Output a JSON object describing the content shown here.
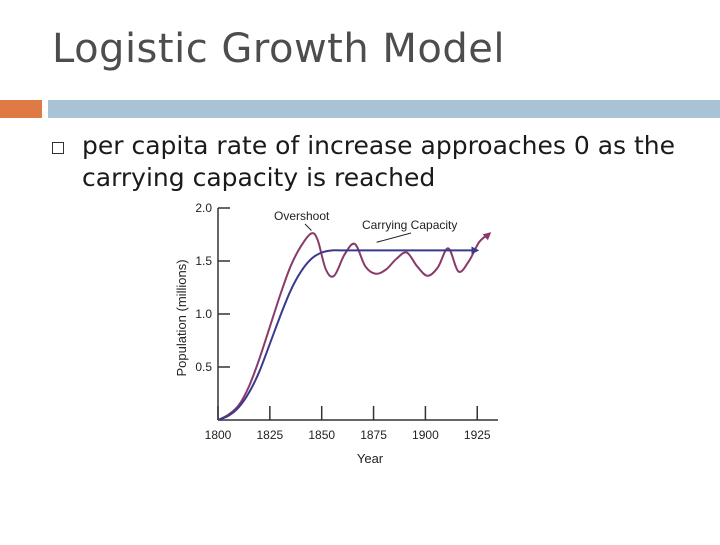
{
  "slide": {
    "title": "Logistic Growth Model",
    "bullet": "per capita rate of increase approaches 0 as the carrying capacity is reached"
  },
  "colors": {
    "accent_orange": "#e07a45",
    "accent_blue": "#a9c3d6",
    "carrying_capacity_curve": "#3a3a8c",
    "overshoot_curve": "#8a3a6a"
  },
  "chart_data": {
    "type": "line",
    "xlabel": "Year",
    "ylabel": "Population (millions)",
    "xlim": [
      1800,
      1935
    ],
    "ylim": [
      0,
      2.0
    ],
    "xticks": [
      1800,
      1825,
      1850,
      1875,
      1900,
      1925
    ],
    "yticks": [
      0.5,
      1.0,
      1.5,
      2.0
    ],
    "ytick_labels": [
      "0.5",
      "1.0",
      "1.5",
      "2.0"
    ],
    "grid": false,
    "annotations": [
      {
        "text": "Overshoot",
        "target": [
          1846,
          1.75
        ]
      },
      {
        "text": "Carrying Capacity",
        "target": [
          1876,
          1.62
        ]
      }
    ],
    "series": [
      {
        "key": "carrying_capacity",
        "x": [
          1800,
          1805,
          1810,
          1815,
          1820,
          1825,
          1830,
          1835,
          1840,
          1845,
          1850,
          1855,
          1860,
          1880,
          1900,
          1920,
          1925
        ],
        "y": [
          0.0,
          0.04,
          0.12,
          0.26,
          0.46,
          0.72,
          0.98,
          1.22,
          1.4,
          1.52,
          1.58,
          1.6,
          1.6,
          1.6,
          1.6,
          1.6,
          1.6
        ]
      },
      {
        "key": "overshoot",
        "x": [
          1800,
          1805,
          1810,
          1815,
          1820,
          1825,
          1830,
          1835,
          1840,
          1845,
          1848,
          1852,
          1856,
          1861,
          1866,
          1871,
          1876,
          1881,
          1886,
          1891,
          1896,
          1901,
          1906,
          1911,
          1916,
          1921,
          1926,
          1931
        ],
        "y": [
          0.0,
          0.05,
          0.14,
          0.32,
          0.58,
          0.88,
          1.18,
          1.45,
          1.64,
          1.76,
          1.7,
          1.42,
          1.36,
          1.56,
          1.66,
          1.45,
          1.38,
          1.42,
          1.52,
          1.58,
          1.45,
          1.36,
          1.44,
          1.62,
          1.4,
          1.5,
          1.68,
          1.76
        ]
      }
    ]
  }
}
